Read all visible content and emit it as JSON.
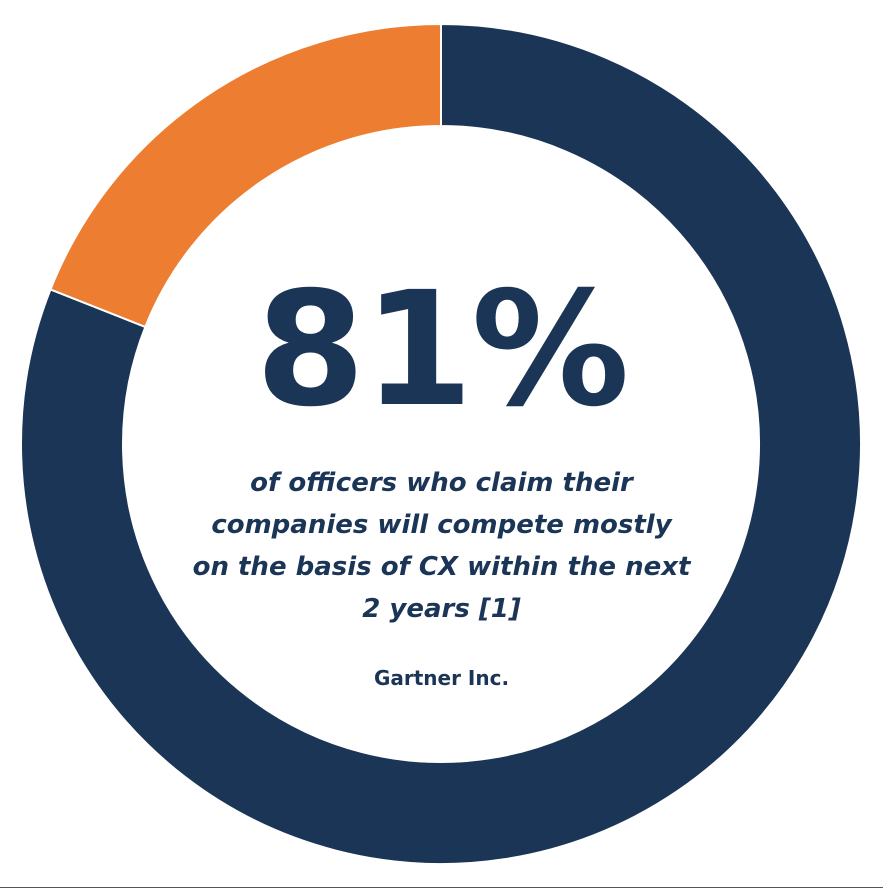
{
  "chart_data": {
    "type": "pie",
    "style": "donut",
    "slices": [
      {
        "value": 81,
        "color": "#1b3557"
      },
      {
        "value": 19,
        "color": "#ed7d31"
      }
    ],
    "center_value": "81%",
    "caption": "of officers who claim their\ncompanies will compete mostly\non the basis of CX within the next\n2 years [1]",
    "source": "Gartner Inc."
  }
}
